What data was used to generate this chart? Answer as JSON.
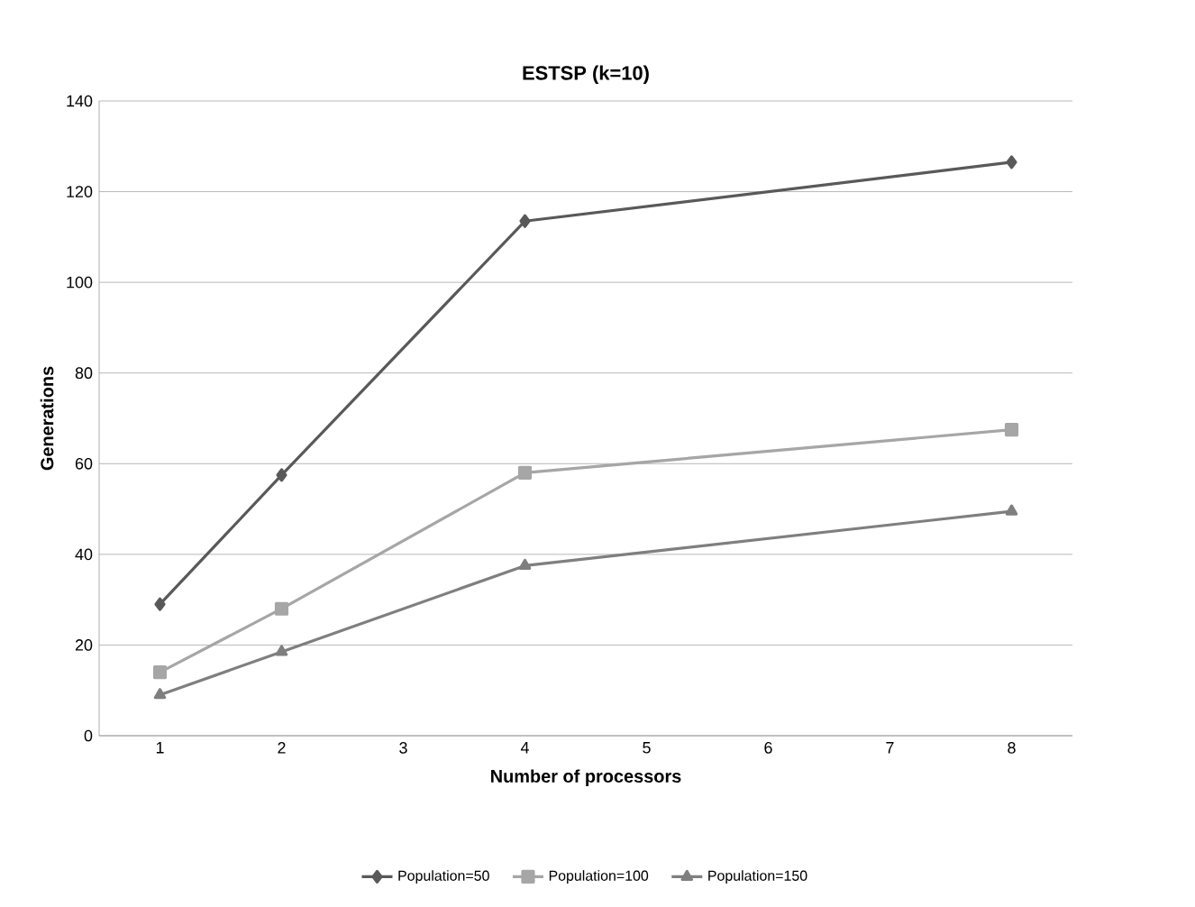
{
  "chart_data": {
    "type": "line",
    "title": "ESTSP (k=10)",
    "xlabel": "Number of processors",
    "ylabel": "Generations",
    "x": [
      1,
      2,
      4,
      8
    ],
    "xlim": [
      0.5,
      8.5
    ],
    "xticks": [
      1,
      2,
      3,
      4,
      5,
      6,
      7,
      8
    ],
    "ylim": [
      0,
      140
    ],
    "yticks": [
      0,
      20,
      40,
      60,
      80,
      100,
      120,
      140
    ],
    "grid": "y",
    "legend": "bottom",
    "line_style": "solid",
    "series": [
      {
        "name": "Population=50",
        "color": "#595959",
        "marker": "diamond",
        "values": [
          29,
          57.5,
          113.5,
          126.5
        ]
      },
      {
        "name": "Population=100",
        "color": "#a6a6a6",
        "marker": "square",
        "values": [
          14,
          28,
          58,
          67.5
        ]
      },
      {
        "name": "Population=150",
        "color": "#7f7f7f",
        "marker": "triangle",
        "values": [
          9,
          18.5,
          37.5,
          49.5
        ]
      }
    ]
  }
}
